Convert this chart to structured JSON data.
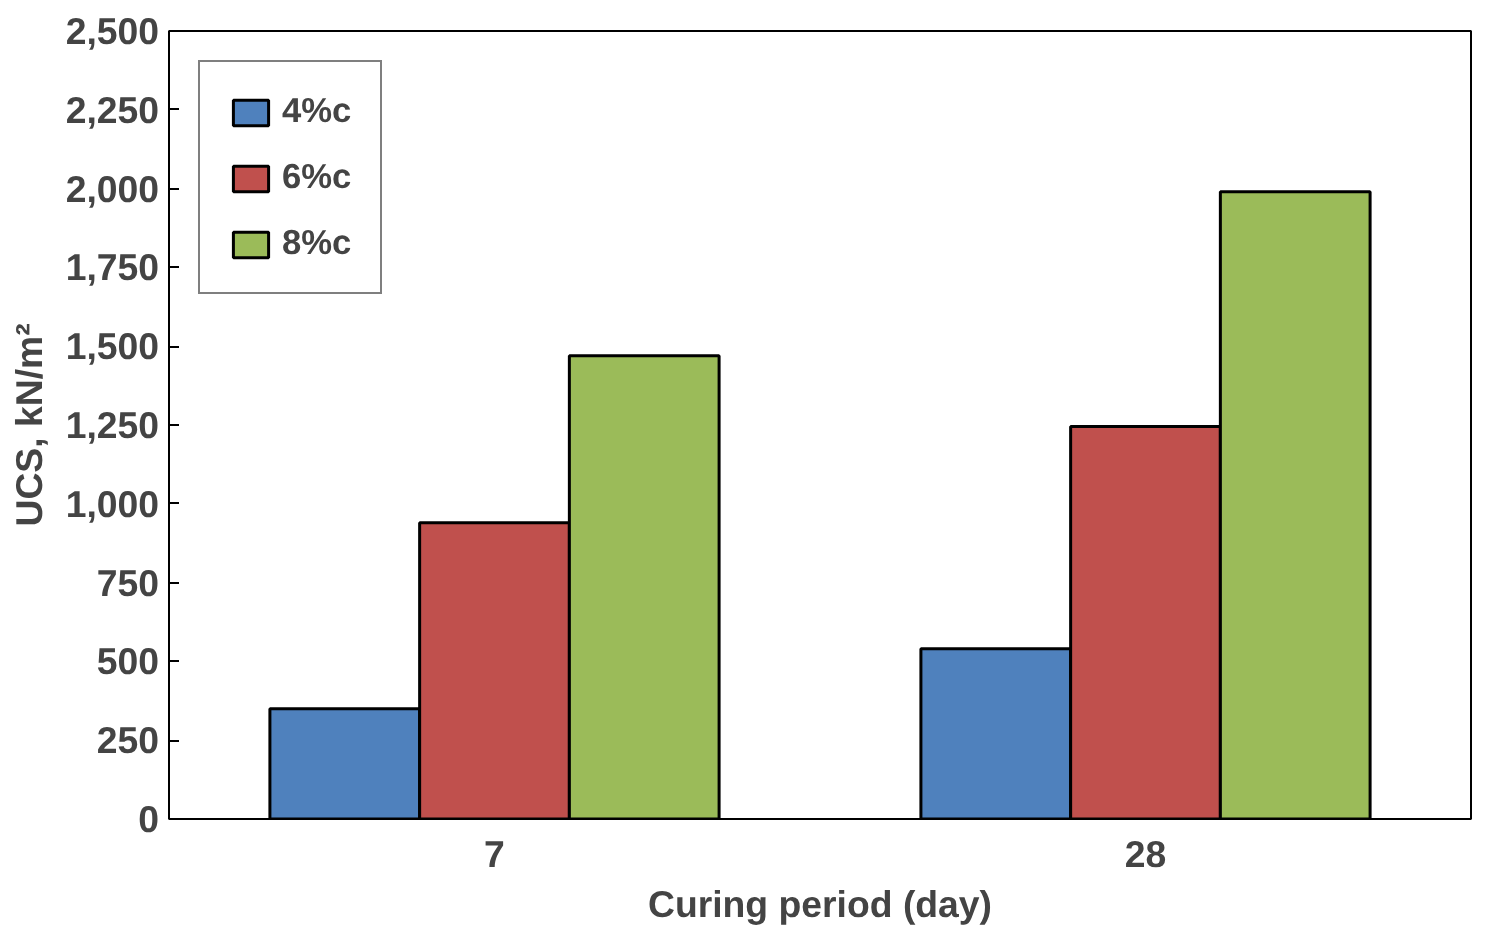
{
  "chart_data": {
    "type": "bar",
    "xlabel": "Curing period (day)",
    "ylabel": "UCS, kN/m²",
    "categories": [
      "7",
      "28"
    ],
    "series": [
      {
        "name": "4%c",
        "color": "#4f81bd",
        "values": [
          350,
          540
        ]
      },
      {
        "name": "6%c",
        "color": "#c0504d",
        "values": [
          940,
          1245
        ]
      },
      {
        "name": "8%c",
        "color": "#9bbb59",
        "values": [
          1470,
          1990
        ]
      }
    ],
    "ylim": [
      0,
      2500
    ],
    "yticks": [
      0,
      250,
      500,
      750,
      {
        "value": 1000,
        "label": "1,000"
      },
      {
        "value": 1250,
        "label": "1,250"
      },
      {
        "value": 1500,
        "label": "1,500"
      },
      {
        "value": 1750,
        "label": "1,750"
      },
      {
        "value": 2000,
        "label": "2,000"
      },
      {
        "value": 2250,
        "label": "2,250"
      },
      {
        "value": 2500,
        "label": "2,500"
      }
    ],
    "grid": false,
    "legend": "top left"
  }
}
